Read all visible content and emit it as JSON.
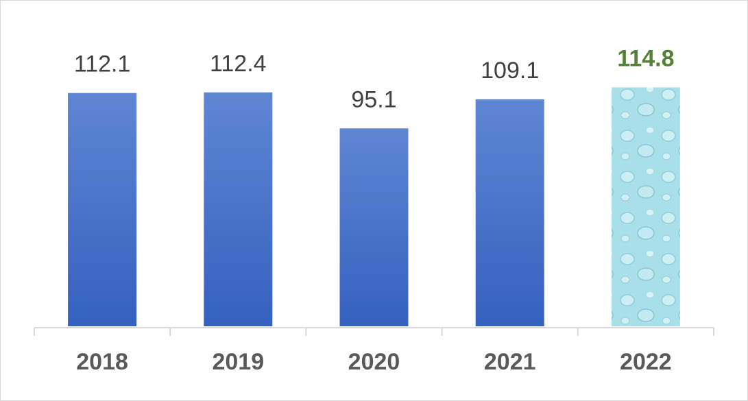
{
  "chart_data": {
    "type": "bar",
    "categories": [
      "2018",
      "2019",
      "2020",
      "2021",
      "2022"
    ],
    "values": [
      112.1,
      112.4,
      95.1,
      109.1,
      114.8
    ],
    "colors": [
      "#4472c4",
      "#4472c4",
      "#4472c4",
      "#4472c4",
      "#a9dfe8"
    ],
    "label_colors": [
      "#404040",
      "#404040",
      "#404040",
      "#404040",
      "#548235"
    ],
    "label_bold": [
      false,
      false,
      false,
      false,
      true
    ],
    "ylim": [
      0,
      140
    ]
  }
}
